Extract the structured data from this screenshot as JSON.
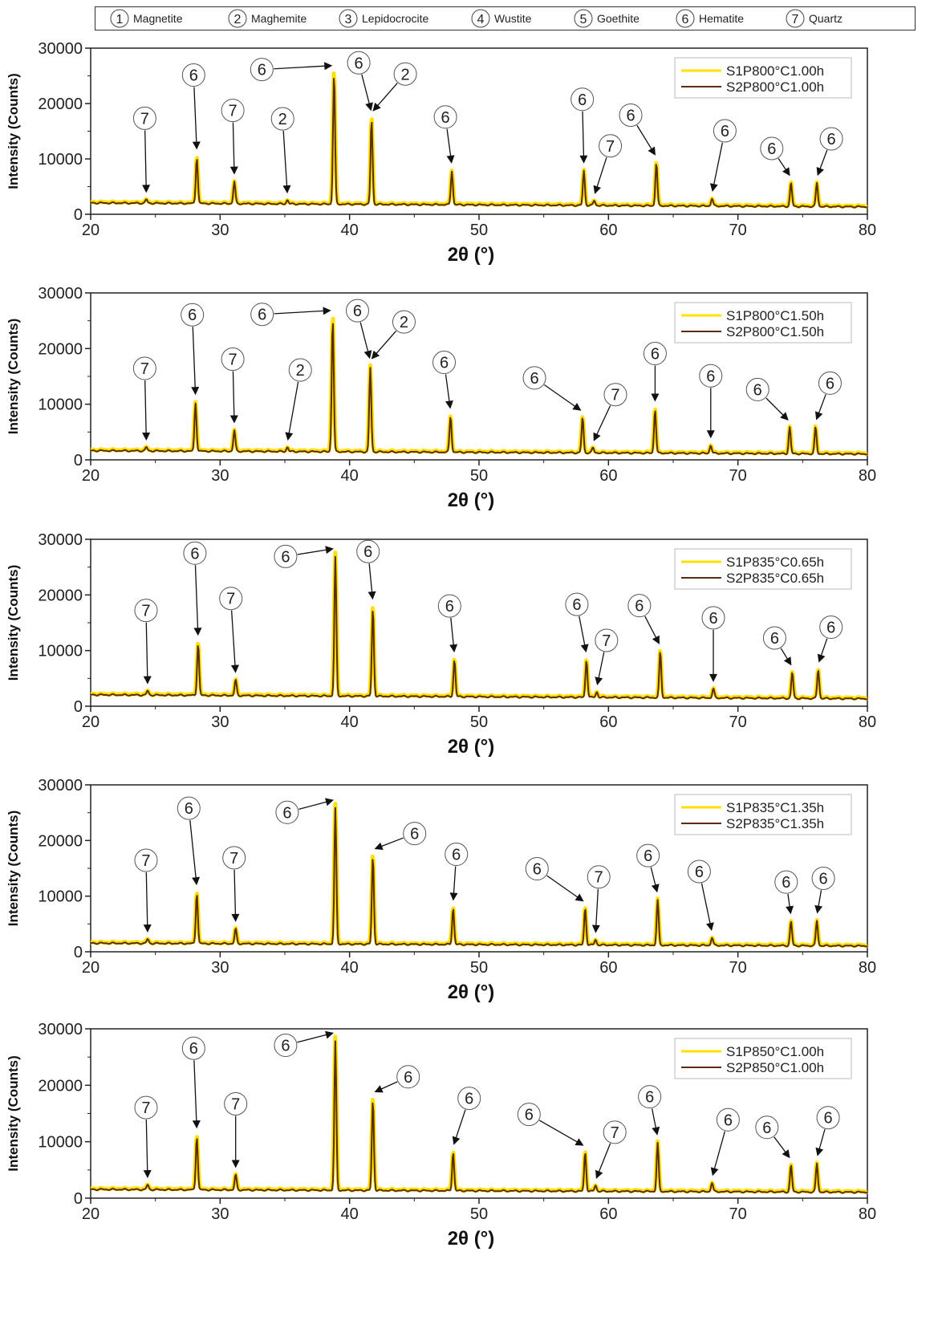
{
  "phase_legend": [
    {
      "num": "1",
      "name": "Magnetite"
    },
    {
      "num": "2",
      "name": "Maghemite"
    },
    {
      "num": "3",
      "name": "Lepidocrocite"
    },
    {
      "num": "4",
      "name": "Wustite"
    },
    {
      "num": "5",
      "name": "Goethite"
    },
    {
      "num": "6",
      "name": "Hematite"
    },
    {
      "num": "7",
      "name": "Quartz"
    }
  ],
  "colors": {
    "S1": "#ffe000",
    "S2": "#5a2d0c"
  },
  "chart_data": [
    {
      "type": "line",
      "xlabel": "2θ (°)",
      "ylabel": "Intensity (Counts)",
      "xlim": [
        20,
        80
      ],
      "ylim": [
        0,
        30000
      ],
      "xticks": [
        20,
        30,
        40,
        50,
        60,
        70,
        80
      ],
      "yticks": [
        0,
        10000,
        20000,
        30000
      ],
      "legend_position": "top-right",
      "series": [
        {
          "name": "S1P800°C1.00h"
        },
        {
          "name": "S2P800°C1.00h"
        }
      ],
      "baseline": [
        2200,
        1500
      ],
      "peaks": [
        {
          "x": 24.3,
          "y": 2700,
          "phase": "7"
        },
        {
          "x": 28.2,
          "y": 10500,
          "phase": "6"
        },
        {
          "x": 31.1,
          "y": 6000,
          "phase": "7"
        },
        {
          "x": 35.2,
          "y": 2600,
          "phase": "2"
        },
        {
          "x": 38.8,
          "y": 26000,
          "phase": "6"
        },
        {
          "x": 41.7,
          "y": 17500,
          "phase": "6, 2"
        },
        {
          "x": 47.9,
          "y": 8000,
          "phase": "6"
        },
        {
          "x": 58.1,
          "y": 8000,
          "phase": "6"
        },
        {
          "x": 58.9,
          "y": 2500,
          "phase": "7"
        },
        {
          "x": 63.7,
          "y": 9500,
          "phase": "6"
        },
        {
          "x": 68.0,
          "y": 2900,
          "phase": "6"
        },
        {
          "x": 74.1,
          "y": 5800,
          "phase": "6"
        },
        {
          "x": 76.1,
          "y": 5800,
          "phase": "6"
        }
      ]
    },
    {
      "type": "line",
      "xlabel": "2θ (°)",
      "ylabel": "Intensity (Counts)",
      "xlim": [
        20,
        80
      ],
      "ylim": [
        0,
        30000
      ],
      "xticks": [
        20,
        30,
        40,
        50,
        60,
        70,
        80
      ],
      "yticks": [
        0,
        10000,
        20000,
        30000
      ],
      "legend_position": "top-right",
      "series": [
        {
          "name": "S1P800°C1.50h"
        },
        {
          "name": "S2P800°C1.50h"
        }
      ],
      "baseline": [
        1800,
        1200
      ],
      "peaks": [
        {
          "x": 24.3,
          "y": 2300,
          "phase": "7"
        },
        {
          "x": 28.1,
          "y": 10500,
          "phase": "6"
        },
        {
          "x": 31.1,
          "y": 5400,
          "phase": "7"
        },
        {
          "x": 35.2,
          "y": 2300,
          "phase": "2"
        },
        {
          "x": 38.7,
          "y": 26000,
          "phase": "6"
        },
        {
          "x": 41.6,
          "y": 17000,
          "phase": "6, 2"
        },
        {
          "x": 47.8,
          "y": 8000,
          "phase": "6"
        },
        {
          "x": 58.0,
          "y": 7800,
          "phase": "6"
        },
        {
          "x": 58.8,
          "y": 2200,
          "phase": "7"
        },
        {
          "x": 63.6,
          "y": 9300,
          "phase": "6"
        },
        {
          "x": 67.9,
          "y": 2700,
          "phase": "6"
        },
        {
          "x": 74.0,
          "y": 6000,
          "phase": "6"
        },
        {
          "x": 76.0,
          "y": 6000,
          "phase": "6"
        }
      ]
    },
    {
      "type": "line",
      "xlabel": "2θ (°)",
      "ylabel": "Intensity (Counts)",
      "xlim": [
        20,
        80
      ],
      "ylim": [
        0,
        30000
      ],
      "xticks": [
        20,
        30,
        40,
        50,
        60,
        70,
        80
      ],
      "yticks": [
        0,
        10000,
        20000,
        30000
      ],
      "legend_position": "top-right",
      "series": [
        {
          "name": "S1P835°C0.65h"
        },
        {
          "name": "S2P835°C0.65h"
        }
      ],
      "baseline": [
        2200,
        1500
      ],
      "peaks": [
        {
          "x": 24.4,
          "y": 2800,
          "phase": "7"
        },
        {
          "x": 28.3,
          "y": 11500,
          "phase": "6"
        },
        {
          "x": 31.2,
          "y": 4800,
          "phase": "7"
        },
        {
          "x": 38.9,
          "y": 27500,
          "phase": "6"
        },
        {
          "x": 41.8,
          "y": 18000,
          "phase": "6"
        },
        {
          "x": 48.1,
          "y": 8500,
          "phase": "6"
        },
        {
          "x": 58.3,
          "y": 8500,
          "phase": "6"
        },
        {
          "x": 59.1,
          "y": 2600,
          "phase": "7"
        },
        {
          "x": 64.0,
          "y": 10000,
          "phase": "6"
        },
        {
          "x": 68.1,
          "y": 3200,
          "phase": "6"
        },
        {
          "x": 74.2,
          "y": 6200,
          "phase": "6"
        },
        {
          "x": 76.2,
          "y": 6700,
          "phase": "6"
        }
      ]
    },
    {
      "type": "line",
      "xlabel": "2θ (°)",
      "ylabel": "Intensity (Counts)",
      "xlim": [
        20,
        80
      ],
      "ylim": [
        0,
        30000
      ],
      "xticks": [
        20,
        30,
        40,
        50,
        60,
        70,
        80
      ],
      "yticks": [
        0,
        10000,
        20000,
        30000
      ],
      "legend_position": "top-right",
      "series": [
        {
          "name": "S1P835°C1.35h"
        },
        {
          "name": "S2P835°C1.35h"
        }
      ],
      "baseline": [
        1700,
        1200
      ],
      "peaks": [
        {
          "x": 24.4,
          "y": 2300,
          "phase": "7"
        },
        {
          "x": 28.2,
          "y": 10800,
          "phase": "6"
        },
        {
          "x": 31.2,
          "y": 4200,
          "phase": "7"
        },
        {
          "x": 38.9,
          "y": 26500,
          "phase": "6"
        },
        {
          "x": 41.8,
          "y": 17500,
          "phase": "6"
        },
        {
          "x": 48.0,
          "y": 8000,
          "phase": "6"
        },
        {
          "x": 58.2,
          "y": 8000,
          "phase": "6"
        },
        {
          "x": 59.0,
          "y": 2200,
          "phase": "7"
        },
        {
          "x": 63.8,
          "y": 9500,
          "phase": "6"
        },
        {
          "x": 68.0,
          "y": 2600,
          "phase": "6"
        },
        {
          "x": 74.1,
          "y": 5600,
          "phase": "6"
        },
        {
          "x": 76.1,
          "y": 5700,
          "phase": "6"
        }
      ]
    },
    {
      "type": "line",
      "xlabel": "2θ (°)",
      "ylabel": "Intensity (Counts)",
      "xlim": [
        20,
        80
      ],
      "ylim": [
        0,
        30000
      ],
      "xticks": [
        20,
        30,
        40,
        50,
        60,
        70,
        80
      ],
      "yticks": [
        0,
        10000,
        20000,
        30000
      ],
      "legend_position": "top-right",
      "series": [
        {
          "name": "S1P850°C1.00h"
        },
        {
          "name": "S2P850°C1.00h"
        }
      ],
      "baseline": [
        1700,
        1200
      ],
      "peaks": [
        {
          "x": 24.4,
          "y": 2400,
          "phase": "7"
        },
        {
          "x": 28.2,
          "y": 11200,
          "phase": "6"
        },
        {
          "x": 31.2,
          "y": 4200,
          "phase": "7"
        },
        {
          "x": 38.9,
          "y": 28500,
          "phase": "6"
        },
        {
          "x": 41.8,
          "y": 17800,
          "phase": "6"
        },
        {
          "x": 48.0,
          "y": 8300,
          "phase": "6"
        },
        {
          "x": 58.2,
          "y": 8300,
          "phase": "6"
        },
        {
          "x": 59.0,
          "y": 2300,
          "phase": "7"
        },
        {
          "x": 63.8,
          "y": 10000,
          "phase": "6"
        },
        {
          "x": 68.0,
          "y": 2800,
          "phase": "6"
        },
        {
          "x": 74.1,
          "y": 6000,
          "phase": "6"
        },
        {
          "x": 76.1,
          "y": 6300,
          "phase": "6"
        }
      ]
    }
  ]
}
